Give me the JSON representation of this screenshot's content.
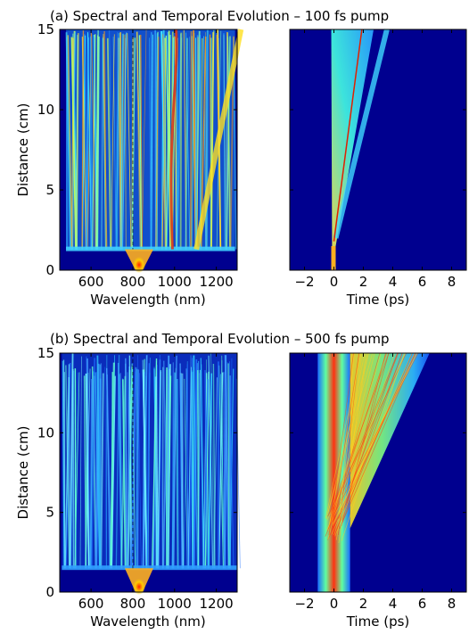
{
  "chart_data": [
    {
      "type": "heatmap",
      "title": "(a) Spectral and Temporal Evolution – 100 fs pump",
      "panels": [
        {
          "id": "a-spectral",
          "xlabel": "Wavelength (nm)",
          "ylabel": "Distance (cm)",
          "xlim": [
            450,
            1300
          ],
          "ylim": [
            0,
            15
          ],
          "xticks": [
            600,
            800,
            1000,
            1200
          ],
          "yticks": [
            0,
            5,
            10,
            15
          ],
          "pump_wavelength_nm": 830,
          "broadening_onset_cm": 1.3,
          "spectral_span_nm": [
            480,
            1290
          ]
        },
        {
          "id": "a-temporal",
          "xlabel": "Time (ps)",
          "ylabel": "",
          "xlim": [
            -3,
            9
          ],
          "ylim": [
            0,
            15
          ],
          "xticks": [
            -2,
            0,
            2,
            4,
            6,
            8
          ],
          "yticks": [
            0,
            5,
            10,
            15
          ],
          "pulse_start_ps": 0,
          "trailing_edge_at_15cm_ps": 2.7
        }
      ]
    },
    {
      "type": "heatmap",
      "title": "(b) Spectral and Temporal Evolution – 500 fs pump",
      "panels": [
        {
          "id": "b-spectral",
          "xlabel": "Wavelength (nm)",
          "ylabel": "Distance (cm)",
          "xlim": [
            450,
            1300
          ],
          "ylim": [
            0,
            15
          ],
          "xticks": [
            600,
            800,
            1000,
            1200
          ],
          "yticks": [
            0,
            5,
            10,
            15
          ],
          "pump_wavelength_nm": 830,
          "broadening_onset_cm": 1.5,
          "spectral_span_nm": [
            460,
            1300
          ]
        },
        {
          "id": "b-temporal",
          "xlabel": "Time (ps)",
          "ylabel": "",
          "xlim": [
            -3,
            9
          ],
          "ylim": [
            0,
            15
          ],
          "xticks": [
            -2,
            0,
            2,
            4,
            6,
            8
          ],
          "yticks": [
            0,
            5,
            10,
            15
          ],
          "pulse_width_ps": [
            -1.1,
            1.1
          ],
          "trailing_edge_at_15cm_ps": 6.5
        }
      ]
    }
  ],
  "colors": {
    "background": "#00008f",
    "low": "#1a6cff",
    "mid": "#40e0ff",
    "high_yellow": "#ffe000",
    "peak_red": "#e02000"
  }
}
